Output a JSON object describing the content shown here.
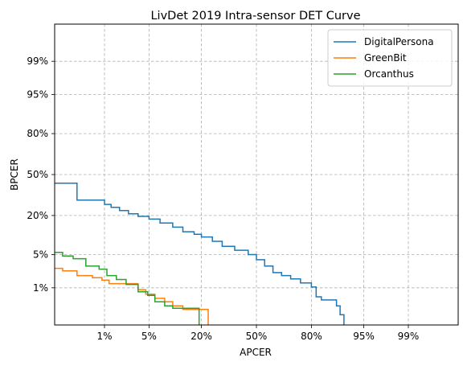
{
  "chart_data": {
    "type": "line",
    "title": "LivDet 2019 Intra-sensor DET Curve",
    "xlabel": "APCER",
    "ylabel": "BPCER",
    "x_scale": "probit (normal deviate)",
    "y_scale": "probit (normal deviate)",
    "xlim": [
      0.1,
      99.9
    ],
    "ylim": [
      0.1,
      99.9
    ],
    "x_ticks": [
      "1%",
      "5%",
      "20%",
      "50%",
      "80%",
      "95%",
      "99%"
    ],
    "x_tick_values": [
      1,
      5,
      20,
      50,
      80,
      95,
      99
    ],
    "y_ticks": [
      "1%",
      "5%",
      "20%",
      "50%",
      "80%",
      "95%",
      "99%"
    ],
    "y_tick_values": [
      1,
      5,
      20,
      50,
      80,
      95,
      99
    ],
    "grid": true,
    "legend_position": "top-right",
    "series": [
      {
        "name": "DigitalPersona",
        "color": "#1f77b4",
        "x": [
          0.1,
          0.3,
          0.3,
          0.8,
          1.0,
          1.3,
          1.8,
          2.5,
          3.5,
          5.0,
          7.0,
          10.0,
          13.0,
          17.0,
          20.0,
          25.0,
          30.0,
          37.0,
          45.0,
          50.0,
          55.0,
          60.0,
          65.0,
          70.0,
          75.0,
          80.0,
          82.0,
          84.0,
          87.0,
          89.0,
          90.0,
          91.0,
          91.0
        ],
        "y": [
          43.0,
          43.0,
          30.0,
          30.0,
          27.0,
          25.0,
          23.0,
          21.0,
          19.5,
          18.0,
          16.0,
          14.0,
          12.0,
          11.0,
          10.0,
          8.5,
          7.0,
          6.0,
          5.0,
          4.0,
          3.0,
          2.2,
          1.9,
          1.6,
          1.3,
          1.05,
          0.6,
          0.5,
          0.5,
          0.35,
          0.2,
          0.2,
          0.1
        ]
      },
      {
        "name": "GreenBit",
        "color": "#ff7f0e",
        "x": [
          0.1,
          0.1,
          0.15,
          0.3,
          0.3,
          0.6,
          0.9,
          1.2,
          2.5,
          3.5,
          4.5,
          6.0,
          8.0,
          10.0,
          13.0,
          18.0,
          23.0,
          23.0
        ],
        "y": [
          2.7,
          2.7,
          2.4,
          2.4,
          1.9,
          1.7,
          1.5,
          1.25,
          1.25,
          0.9,
          0.7,
          0.55,
          0.45,
          0.35,
          0.28,
          0.28,
          0.28,
          0.1
        ]
      },
      {
        "name": "Orcanthus",
        "color": "#2ca02c",
        "x": [
          0.1,
          0.15,
          0.25,
          0.45,
          0.8,
          1.1,
          1.6,
          2.3,
          3.5,
          4.8,
          6.0,
          8.0,
          10.0,
          14.0,
          19.0,
          19.0
        ],
        "y": [
          5.5,
          4.7,
          4.2,
          3.0,
          2.6,
          1.9,
          1.55,
          1.2,
          0.8,
          0.65,
          0.45,
          0.35,
          0.3,
          0.3,
          0.3,
          0.1
        ]
      }
    ]
  }
}
